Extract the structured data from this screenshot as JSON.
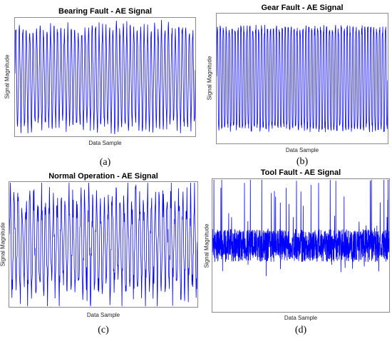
{
  "chart_data": [
    {
      "type": "line",
      "panel_label": "(a)",
      "title": "Bearing Fault - AE Signal",
      "xlabel": "Data Sample",
      "ylabel": "Signal Magnitude",
      "grid": false,
      "x_ticks_shown": false,
      "y_ticks_shown": false,
      "series": [
        {
          "color": "#0000ff",
          "pattern": "periodic-bursts",
          "cycles": 52
        }
      ]
    },
    {
      "type": "line",
      "panel_label": "(b)",
      "title": "Gear Fault - AE Signal",
      "xlabel": "Data Sample",
      "ylabel": "Signal Magnitude",
      "grid": false,
      "x_ticks_shown": false,
      "y_ticks_shown": false,
      "series": [
        {
          "color": "#0000ff",
          "pattern": "dense-periodic",
          "cycles": 58
        }
      ]
    },
    {
      "type": "line",
      "panel_label": "(c)",
      "title": "Normal Operation - AE Signal",
      "xlabel": "Data Sample",
      "ylabel": "Signal Magnitude",
      "grid": false,
      "x_ticks_shown": false,
      "y_ticks_shown": false,
      "series": [
        {
          "color": "#0000ff",
          "pattern": "irregular-periodic",
          "cycles": 48
        }
      ]
    },
    {
      "type": "line",
      "panel_label": "(d)",
      "title": "Tool Fault - AE Signal",
      "xlabel": "Data Sample",
      "ylabel": "Signal Magnitude",
      "grid": false,
      "x_ticks_shown": false,
      "y_ticks_shown": false,
      "series": [
        {
          "color": "#0000ff",
          "pattern": "noisy-spiky",
          "cycles": 0
        }
      ]
    }
  ]
}
